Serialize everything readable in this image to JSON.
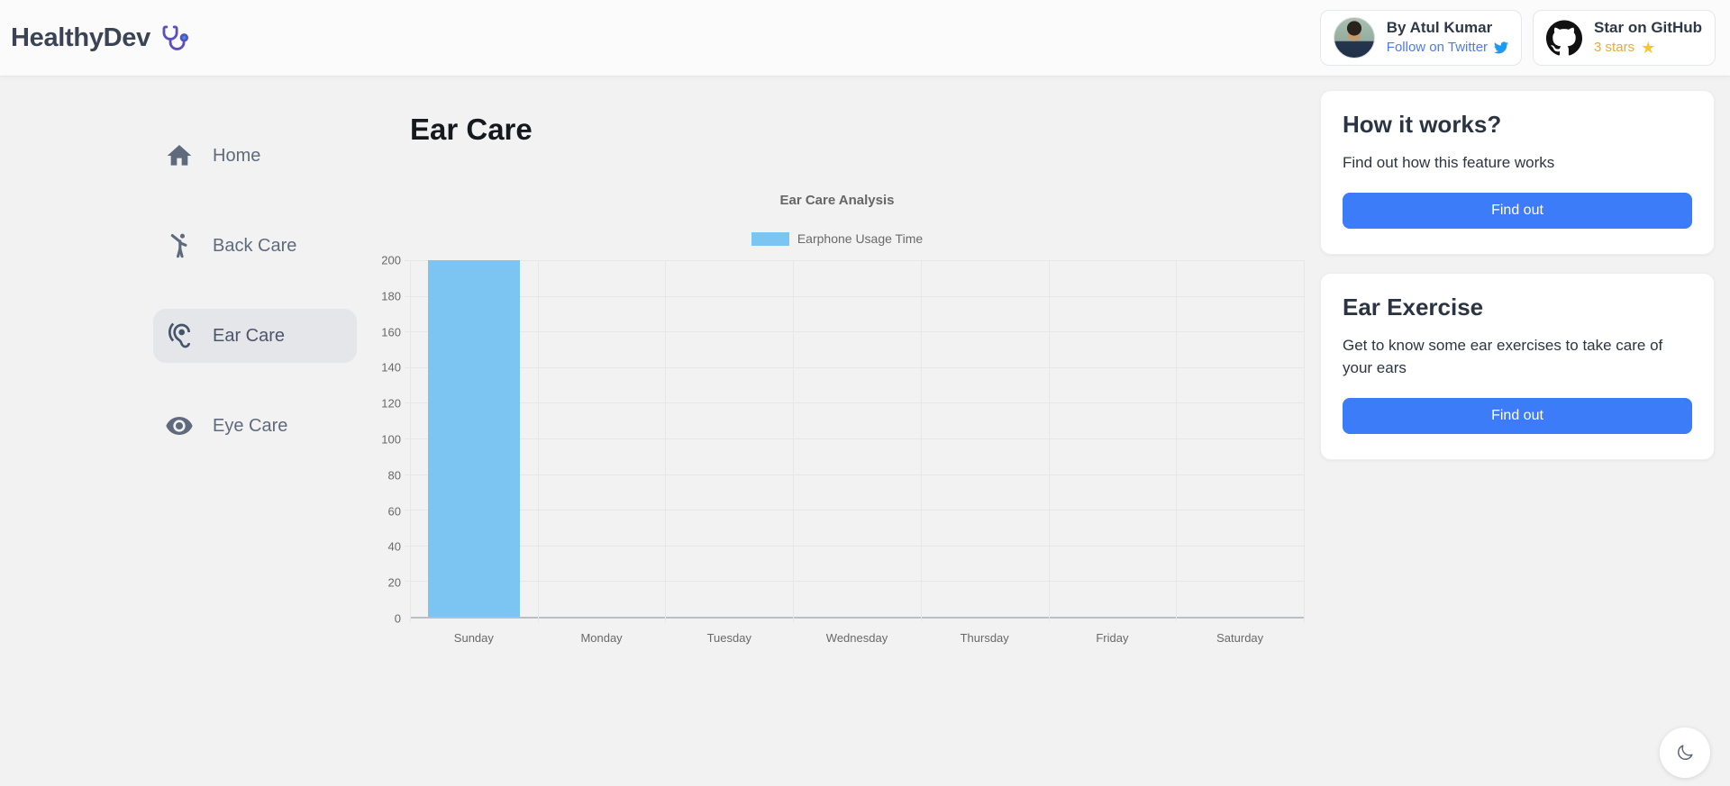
{
  "header": {
    "brand": "HealthyDev",
    "author_card": {
      "name": "By Atul Kumar",
      "link_label": "Follow on Twitter"
    },
    "github_card": {
      "label": "Star on GitHub",
      "stars_label": "3 stars"
    }
  },
  "sidebar": {
    "items": [
      {
        "label": "Home",
        "active": false
      },
      {
        "label": "Back Care",
        "active": false
      },
      {
        "label": "Ear Care",
        "active": true
      },
      {
        "label": "Eye Care",
        "active": false
      }
    ]
  },
  "main": {
    "title": "Ear Care"
  },
  "chart_data": {
    "type": "bar",
    "title": "Ear Care Analysis",
    "categories": [
      "Sunday",
      "Monday",
      "Tuesday",
      "Wednesday",
      "Thursday",
      "Friday",
      "Saturday"
    ],
    "series": [
      {
        "name": "Earphone Usage Time",
        "values": [
          200,
          0,
          0,
          0,
          0,
          0,
          0
        ]
      }
    ],
    "xlabel": "",
    "ylabel": "",
    "ylim": [
      0,
      200
    ],
    "ytick_step": 20,
    "bar_color": "#7cc4f2",
    "grid": true,
    "legend_position": "top"
  },
  "right_panel": {
    "cards": [
      {
        "title": "How it works?",
        "body": "Find out how this feature works",
        "button": "Find out"
      },
      {
        "title": "Ear Exercise",
        "body": "Get to know some ear exercises to take care of your ears",
        "button": "Find out"
      }
    ]
  },
  "colors": {
    "accent_blue": "#3c7cf8",
    "bar_blue": "#7cc4f2",
    "link_blue": "#4d7bf3",
    "twitter_blue": "#1d9bf0",
    "star_gold": "#f6c62d",
    "page_bg": "#f2f2f2",
    "header_bg": "#fbfbfb"
  }
}
